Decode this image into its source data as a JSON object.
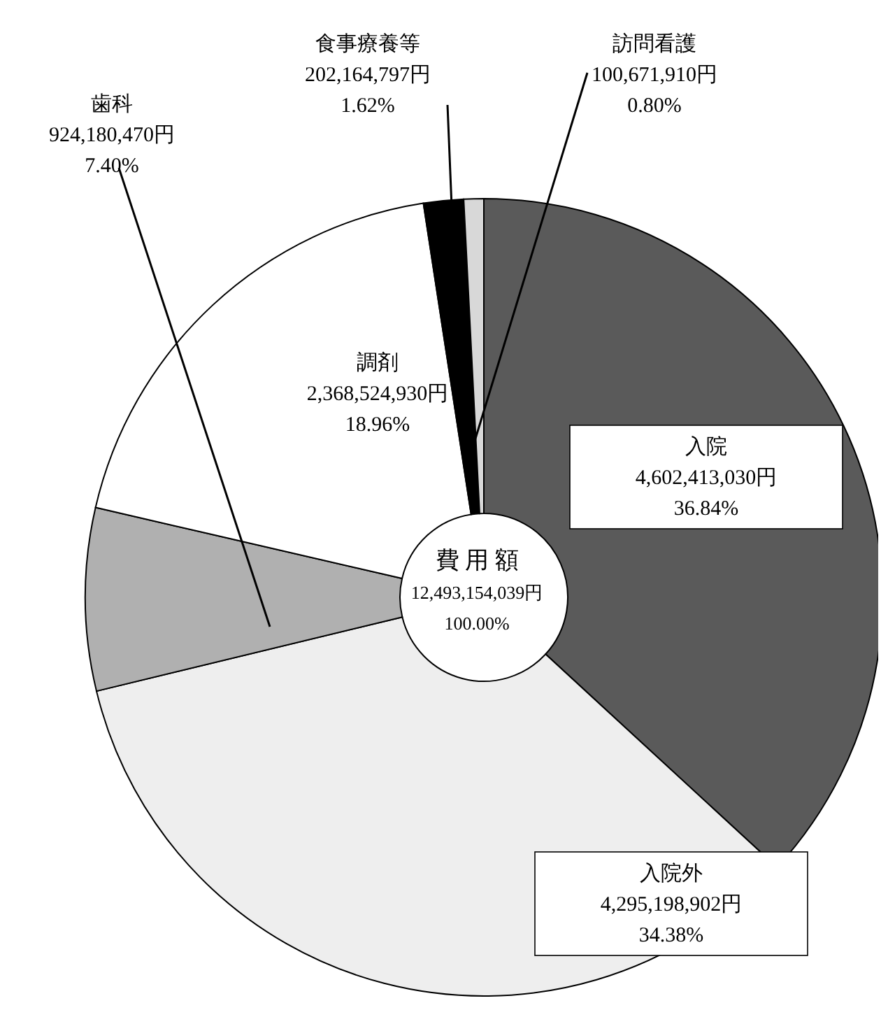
{
  "chart_data": {
    "type": "donut",
    "categories": [
      "入院",
      "入院外",
      "歯科",
      "調剤",
      "食事療養等",
      "訪問看護"
    ],
    "values": [
      4602413030,
      4295198902,
      924180470,
      2368524930,
      202164797,
      100671910
    ],
    "value_labels": [
      "4,602,413,030円\n36.84%",
      "4,295,198,902円\n34.38%",
      "924,180,470円\n7.40%",
      "2,368,524,930円\n18.96%",
      "202,164,797円\n1.62%",
      "100,671,910円\n0.80%"
    ],
    "colors": [
      "#5a5a5a",
      "#eeeeee",
      "#b0b0b0",
      "#ffffff",
      "#000000",
      "#d8d8d8"
    ],
    "annotations": [
      "費 用 額",
      "12,493,154,039円",
      "100.00%"
    ]
  }
}
